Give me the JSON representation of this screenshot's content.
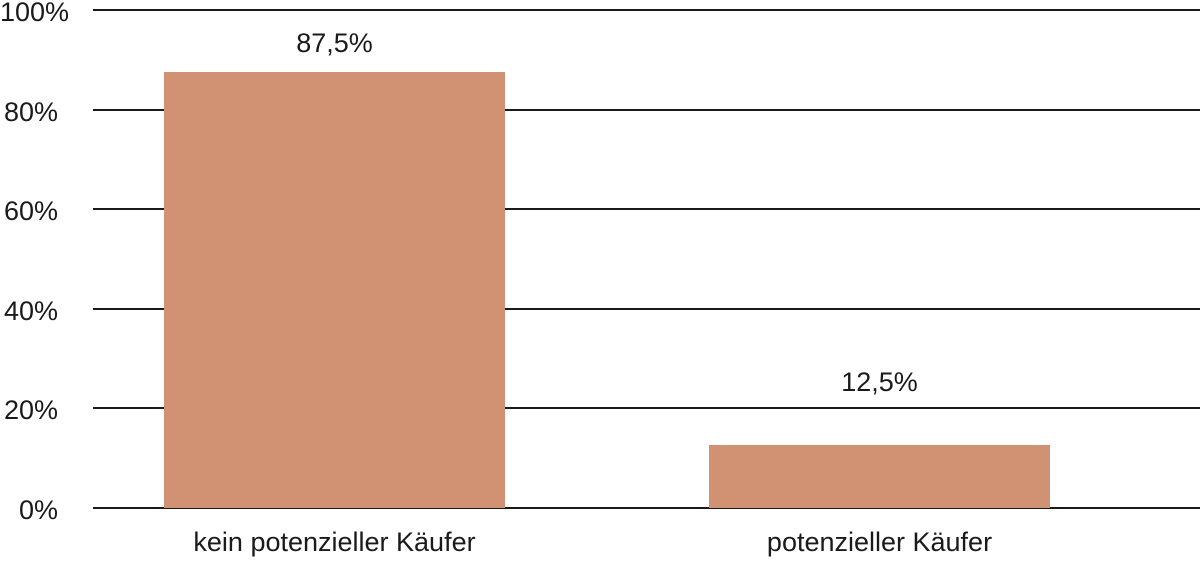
{
  "chart_data": {
    "type": "bar",
    "categories": [
      "kein potenzieller Käufer",
      "potenzieller Käufer"
    ],
    "values": [
      87.5,
      12.5
    ],
    "value_labels": [
      "87,5%",
      "12,5%"
    ],
    "y_ticks": [
      0,
      20,
      40,
      60,
      80,
      100
    ],
    "y_tick_labels": [
      "0%",
      "20%",
      "40%",
      "60%",
      "80%",
      "100%"
    ],
    "ylim": [
      0,
      100
    ],
    "title": "",
    "xlabel": "",
    "ylabel": "",
    "grid": "horizontal gridlines on, 20% steps",
    "legend": "none",
    "colors": {
      "bar_fill": "#D09272",
      "gridline": "#1A1A1A",
      "text": "#1A1A1A",
      "background": "#FFFFFF"
    }
  }
}
